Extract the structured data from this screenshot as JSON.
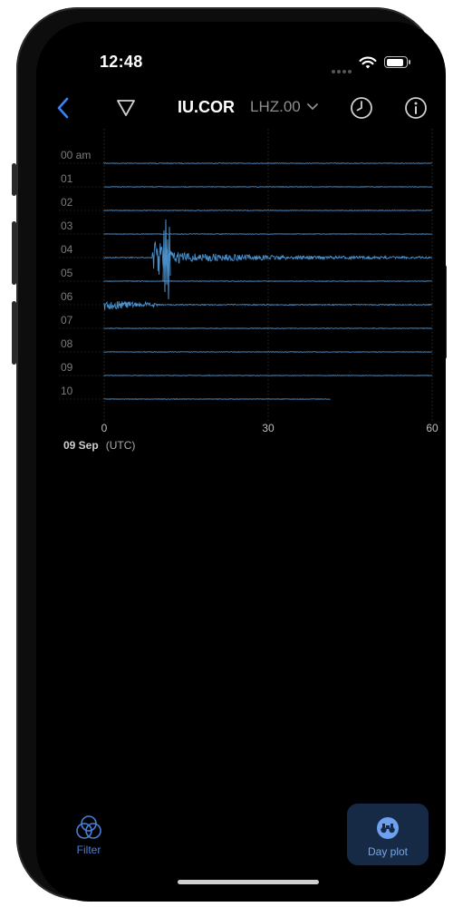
{
  "status": {
    "time": "12:48"
  },
  "nav": {
    "back_icon": "chevron-left-icon",
    "filter_icon": "triangle-filter-icon",
    "station": "IU.COR",
    "channel": "LHZ.00",
    "history_icon": "clock-icon",
    "info_icon": "info-icon"
  },
  "plot": {
    "hour_labels": [
      "00 am",
      "01",
      "02",
      "03",
      "04",
      "05",
      "06",
      "07",
      "08",
      "09",
      "10"
    ],
    "x_ticks": [
      "0",
      "30",
      "60"
    ],
    "date": "09 Sep",
    "timezone": "(UTC)",
    "trace_color": "#4a8fc9"
  },
  "tabs": {
    "filter_label": "Filter",
    "dayplot_label": "Day plot",
    "accent": "#4a7fd6"
  }
}
